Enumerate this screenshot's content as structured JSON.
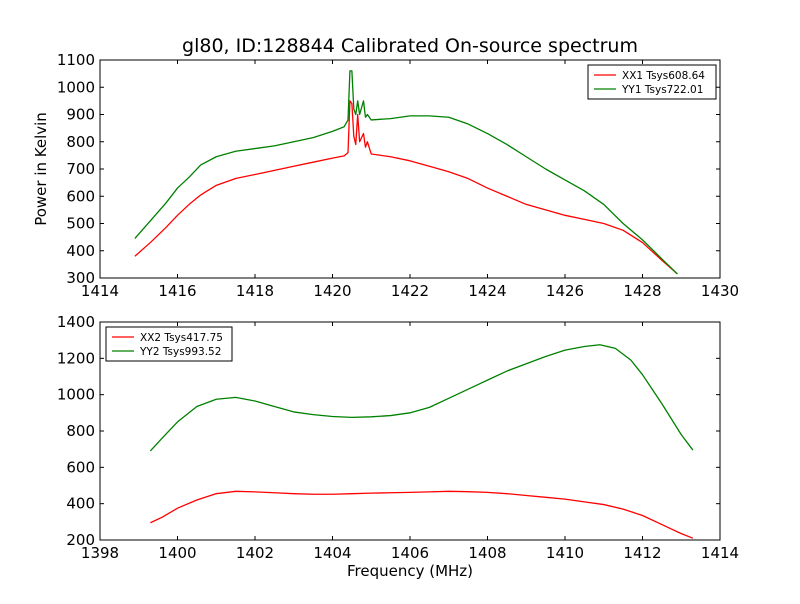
{
  "title": "gl80, ID:128844 Calibrated On-source spectrum",
  "ylabel": "Power in Kelvin",
  "xlabel": "Frequency (MHz)",
  "chart_data": [
    {
      "type": "line",
      "title": "gl80, ID:128844 Calibrated On-source spectrum",
      "ylabel": "Power in Kelvin",
      "xlim": [
        1414,
        1430
      ],
      "ylim": [
        300,
        1100
      ],
      "xticks": [
        1414,
        1416,
        1418,
        1420,
        1422,
        1424,
        1426,
        1428,
        1430
      ],
      "yticks": [
        300,
        400,
        500,
        600,
        700,
        800,
        900,
        1000,
        1100
      ],
      "legend_position": "top-right",
      "series": [
        {
          "name": "XX1 Tsys608.64",
          "color": "#ff0000",
          "points": [
            [
              1414.9,
              380
            ],
            [
              1415.3,
              430
            ],
            [
              1415.7,
              485
            ],
            [
              1416.0,
              530
            ],
            [
              1416.3,
              570
            ],
            [
              1416.6,
              605
            ],
            [
              1417.0,
              640
            ],
            [
              1417.5,
              665
            ],
            [
              1418.0,
              680
            ],
            [
              1418.5,
              695
            ],
            [
              1419.0,
              710
            ],
            [
              1419.5,
              725
            ],
            [
              1420.0,
              740
            ],
            [
              1420.3,
              748
            ],
            [
              1420.4,
              760
            ],
            [
              1420.45,
              950
            ],
            [
              1420.5,
              940
            ],
            [
              1420.55,
              820
            ],
            [
              1420.6,
              790
            ],
            [
              1420.65,
              900
            ],
            [
              1420.7,
              800
            ],
            [
              1420.8,
              830
            ],
            [
              1420.85,
              780
            ],
            [
              1420.9,
              800
            ],
            [
              1421.0,
              755
            ],
            [
              1421.5,
              745
            ],
            [
              1422.0,
              730
            ],
            [
              1422.5,
              710
            ],
            [
              1423.0,
              690
            ],
            [
              1423.5,
              665
            ],
            [
              1424.0,
              630
            ],
            [
              1424.5,
              600
            ],
            [
              1425.0,
              570
            ],
            [
              1425.5,
              550
            ],
            [
              1426.0,
              530
            ],
            [
              1426.5,
              515
            ],
            [
              1427.0,
              500
            ],
            [
              1427.5,
              475
            ],
            [
              1428.0,
              430
            ],
            [
              1428.5,
              365
            ],
            [
              1428.9,
              315
            ]
          ]
        },
        {
          "name": "YY1 Tsys722.01",
          "color": "#008000",
          "points": [
            [
              1414.9,
              445
            ],
            [
              1415.3,
              510
            ],
            [
              1415.7,
              575
            ],
            [
              1416.0,
              630
            ],
            [
              1416.3,
              670
            ],
            [
              1416.6,
              715
            ],
            [
              1417.0,
              745
            ],
            [
              1417.5,
              765
            ],
            [
              1418.0,
              775
            ],
            [
              1418.5,
              785
            ],
            [
              1419.0,
              800
            ],
            [
              1419.5,
              815
            ],
            [
              1420.0,
              838
            ],
            [
              1420.3,
              855
            ],
            [
              1420.4,
              880
            ],
            [
              1420.45,
              1060
            ],
            [
              1420.5,
              1060
            ],
            [
              1420.55,
              920
            ],
            [
              1420.6,
              900
            ],
            [
              1420.65,
              950
            ],
            [
              1420.7,
              900
            ],
            [
              1420.8,
              950
            ],
            [
              1420.85,
              890
            ],
            [
              1420.9,
              900
            ],
            [
              1421.0,
              880
            ],
            [
              1421.5,
              885
            ],
            [
              1422.0,
              895
            ],
            [
              1422.5,
              895
            ],
            [
              1423.0,
              890
            ],
            [
              1423.5,
              865
            ],
            [
              1424.0,
              830
            ],
            [
              1424.5,
              790
            ],
            [
              1425.0,
              745
            ],
            [
              1425.5,
              700
            ],
            [
              1426.0,
              660
            ],
            [
              1426.5,
              620
            ],
            [
              1427.0,
              570
            ],
            [
              1427.5,
              500
            ],
            [
              1428.0,
              440
            ],
            [
              1428.5,
              370
            ],
            [
              1428.9,
              315
            ]
          ]
        }
      ]
    },
    {
      "type": "line",
      "xlabel": "Frequency (MHz)",
      "xlim": [
        1398,
        1414
      ],
      "ylim": [
        200,
        1400
      ],
      "xticks": [
        1398,
        1400,
        1402,
        1404,
        1406,
        1408,
        1410,
        1412,
        1414
      ],
      "yticks": [
        200,
        400,
        600,
        800,
        1000,
        1200,
        1400
      ],
      "legend_position": "top-left",
      "series": [
        {
          "name": "XX2 Tsys417.75",
          "color": "#ff0000",
          "points": [
            [
              1399.3,
              295
            ],
            [
              1399.6,
              325
            ],
            [
              1400.0,
              375
            ],
            [
              1400.5,
              420
            ],
            [
              1401.0,
              455
            ],
            [
              1401.5,
              468
            ],
            [
              1402.0,
              465
            ],
            [
              1402.5,
              460
            ],
            [
              1403.0,
              455
            ],
            [
              1403.5,
              452
            ],
            [
              1404.0,
              452
            ],
            [
              1404.5,
              455
            ],
            [
              1405.0,
              458
            ],
            [
              1405.5,
              460
            ],
            [
              1406.0,
              462
            ],
            [
              1406.5,
              465
            ],
            [
              1407.0,
              468
            ],
            [
              1407.5,
              466
            ],
            [
              1408.0,
              462
            ],
            [
              1408.5,
              455
            ],
            [
              1409.0,
              445
            ],
            [
              1409.5,
              435
            ],
            [
              1410.0,
              425
            ],
            [
              1410.5,
              410
            ],
            [
              1411.0,
              395
            ],
            [
              1411.5,
              370
            ],
            [
              1412.0,
              335
            ],
            [
              1412.5,
              285
            ],
            [
              1413.0,
              235
            ],
            [
              1413.3,
              210
            ]
          ]
        },
        {
          "name": "YY2 Tsys993.52",
          "color": "#008000",
          "points": [
            [
              1399.3,
              690
            ],
            [
              1399.6,
              760
            ],
            [
              1400.0,
              850
            ],
            [
              1400.5,
              935
            ],
            [
              1401.0,
              975
            ],
            [
              1401.5,
              985
            ],
            [
              1402.0,
              965
            ],
            [
              1402.5,
              935
            ],
            [
              1403.0,
              905
            ],
            [
              1403.5,
              890
            ],
            [
              1404.0,
              880
            ],
            [
              1404.5,
              875
            ],
            [
              1405.0,
              878
            ],
            [
              1405.5,
              885
            ],
            [
              1406.0,
              900
            ],
            [
              1406.5,
              930
            ],
            [
              1407.0,
              980
            ],
            [
              1407.5,
              1030
            ],
            [
              1408.0,
              1080
            ],
            [
              1408.5,
              1130
            ],
            [
              1409.0,
              1170
            ],
            [
              1409.5,
              1210
            ],
            [
              1410.0,
              1245
            ],
            [
              1410.5,
              1265
            ],
            [
              1410.9,
              1275
            ],
            [
              1411.3,
              1255
            ],
            [
              1411.7,
              1190
            ],
            [
              1412.0,
              1110
            ],
            [
              1412.5,
              950
            ],
            [
              1413.0,
              780
            ],
            [
              1413.3,
              695
            ]
          ]
        }
      ]
    }
  ]
}
